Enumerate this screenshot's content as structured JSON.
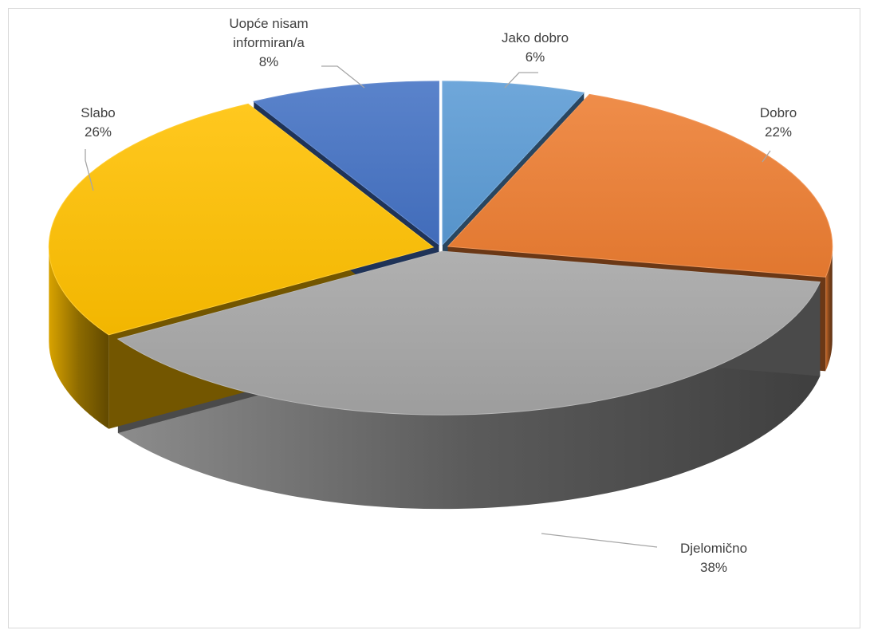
{
  "chart_data": {
    "type": "pie",
    "title": "",
    "categories": [
      "Jako dobro",
      "Dobro",
      "Djelomično",
      "Slabo",
      "Uopće nisam informiran/a"
    ],
    "values": [
      6,
      22,
      38,
      26,
      8
    ],
    "value_labels": [
      "6%",
      "22%",
      "38%",
      "26%",
      "8%"
    ],
    "label_lines": [
      [
        "Jako dobro"
      ],
      [
        "Dobro"
      ],
      [
        "Djelomično"
      ],
      [
        "Slabo"
      ],
      [
        "Uopće nisam",
        "informiran/a"
      ]
    ],
    "colors": [
      "#5b9bd5",
      "#ed7d31",
      "#a5a5a5",
      "#ffc000",
      "#4472c4"
    ],
    "style": "3d-exploded",
    "legend": "none",
    "label_placement": "outside-with-leader-lines"
  }
}
